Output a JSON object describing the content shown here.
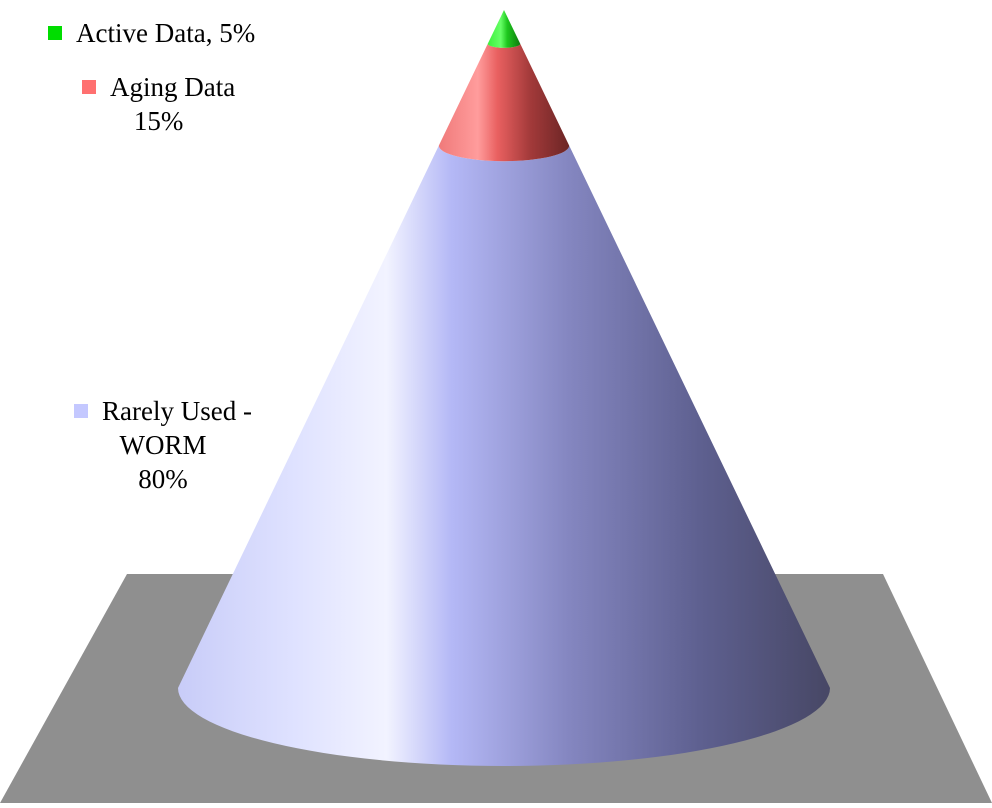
{
  "chart_data": {
    "type": "pie",
    "style": "3d-cone",
    "title": "",
    "categories": [
      "Active Data",
      "Aging Data",
      "Rarely Used - WORM"
    ],
    "values": [
      5,
      15,
      80
    ],
    "unit": "%",
    "colors": [
      "#00dd00",
      "#ff7070",
      "#c4c8ff"
    ],
    "floor_color": "#8f8f8f",
    "labels": [
      {
        "name": "Active Data",
        "value_text": "5%",
        "separator": ", "
      },
      {
        "name": "Aging Data",
        "value_text": "15%"
      },
      {
        "name": "Rarely Used -",
        "name_line2": "WORM",
        "value_text": "80%"
      }
    ],
    "legend": "left"
  }
}
